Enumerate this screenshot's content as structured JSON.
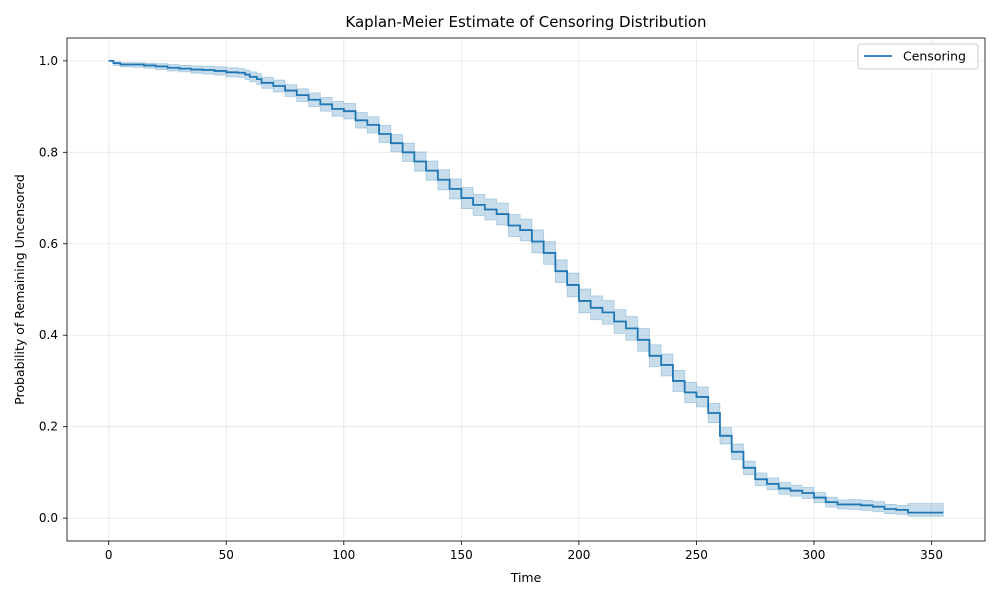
{
  "chart_data": {
    "type": "line",
    "title": "Kaplan-Meier Estimate of Censoring Distribution",
    "xlabel": "Time",
    "ylabel": "Probability of Remaining Uncensored",
    "xlim": [
      -17.75,
      372.75
    ],
    "ylim": [
      -0.05,
      1.05
    ],
    "xticks": [
      0,
      50,
      100,
      150,
      200,
      250,
      300,
      350
    ],
    "yticks": [
      0.0,
      0.2,
      0.4,
      0.6,
      0.8,
      1.0
    ],
    "grid": true,
    "legend": {
      "placement": "top-right"
    },
    "colors": {
      "line": "#1f77b4",
      "band": "#1f77b4"
    },
    "series": [
      {
        "name": "Censoring",
        "x": [
          0,
          2,
          5,
          10,
          15,
          20,
          25,
          30,
          35,
          40,
          45,
          50,
          55,
          58,
          60,
          63,
          65,
          70,
          75,
          80,
          85,
          90,
          95,
          100,
          105,
          110,
          115,
          120,
          125,
          130,
          135,
          140,
          145,
          150,
          155,
          160,
          165,
          170,
          175,
          180,
          185,
          190,
          195,
          200,
          205,
          210,
          215,
          220,
          225,
          230,
          235,
          240,
          245,
          250,
          255,
          260,
          265,
          270,
          275,
          280,
          285,
          290,
          295,
          300,
          305,
          310,
          315,
          320,
          325,
          330,
          335,
          340,
          345,
          350,
          355
        ],
        "y": [
          1.0,
          0.995,
          0.992,
          0.992,
          0.99,
          0.988,
          0.985,
          0.983,
          0.981,
          0.98,
          0.978,
          0.975,
          0.974,
          0.97,
          0.965,
          0.96,
          0.952,
          0.945,
          0.935,
          0.925,
          0.915,
          0.905,
          0.895,
          0.89,
          0.87,
          0.86,
          0.84,
          0.82,
          0.8,
          0.78,
          0.76,
          0.74,
          0.72,
          0.7,
          0.685,
          0.675,
          0.665,
          0.64,
          0.63,
          0.605,
          0.58,
          0.54,
          0.51,
          0.475,
          0.46,
          0.45,
          0.43,
          0.415,
          0.39,
          0.355,
          0.335,
          0.3,
          0.275,
          0.265,
          0.23,
          0.18,
          0.145,
          0.11,
          0.085,
          0.075,
          0.065,
          0.06,
          0.055,
          0.045,
          0.035,
          0.03,
          0.03,
          0.028,
          0.025,
          0.02,
          0.018,
          0.012,
          0.012,
          0.012,
          0.012
        ],
        "lower": [
          1.0,
          0.99,
          0.987,
          0.986,
          0.984,
          0.981,
          0.978,
          0.976,
          0.973,
          0.971,
          0.969,
          0.965,
          0.964,
          0.959,
          0.954,
          0.948,
          0.94,
          0.932,
          0.922,
          0.911,
          0.9,
          0.89,
          0.879,
          0.873,
          0.853,
          0.842,
          0.821,
          0.801,
          0.78,
          0.759,
          0.739,
          0.718,
          0.698,
          0.677,
          0.662,
          0.652,
          0.641,
          0.616,
          0.606,
          0.58,
          0.555,
          0.515,
          0.484,
          0.449,
          0.434,
          0.424,
          0.404,
          0.389,
          0.365,
          0.331,
          0.311,
          0.277,
          0.253,
          0.243,
          0.209,
          0.162,
          0.128,
          0.095,
          0.071,
          0.062,
          0.052,
          0.048,
          0.043,
          0.034,
          0.024,
          0.02,
          0.019,
          0.017,
          0.014,
          0.01,
          0.008,
          0.004,
          0.004,
          0.004,
          0.004
        ],
        "upper": [
          1.0,
          0.998,
          0.996,
          0.996,
          0.995,
          0.994,
          0.992,
          0.99,
          0.989,
          0.988,
          0.987,
          0.985,
          0.983,
          0.98,
          0.976,
          0.972,
          0.964,
          0.958,
          0.948,
          0.939,
          0.93,
          0.92,
          0.911,
          0.907,
          0.887,
          0.878,
          0.859,
          0.839,
          0.82,
          0.801,
          0.781,
          0.762,
          0.742,
          0.723,
          0.708,
          0.698,
          0.689,
          0.664,
          0.654,
          0.63,
          0.605,
          0.565,
          0.536,
          0.501,
          0.486,
          0.476,
          0.456,
          0.441,
          0.415,
          0.379,
          0.359,
          0.323,
          0.297,
          0.287,
          0.251,
          0.198,
          0.162,
          0.125,
          0.099,
          0.088,
          0.078,
          0.072,
          0.067,
          0.056,
          0.046,
          0.04,
          0.041,
          0.039,
          0.036,
          0.03,
          0.028,
          0.032,
          0.032,
          0.032,
          0.032
        ]
      }
    ]
  }
}
